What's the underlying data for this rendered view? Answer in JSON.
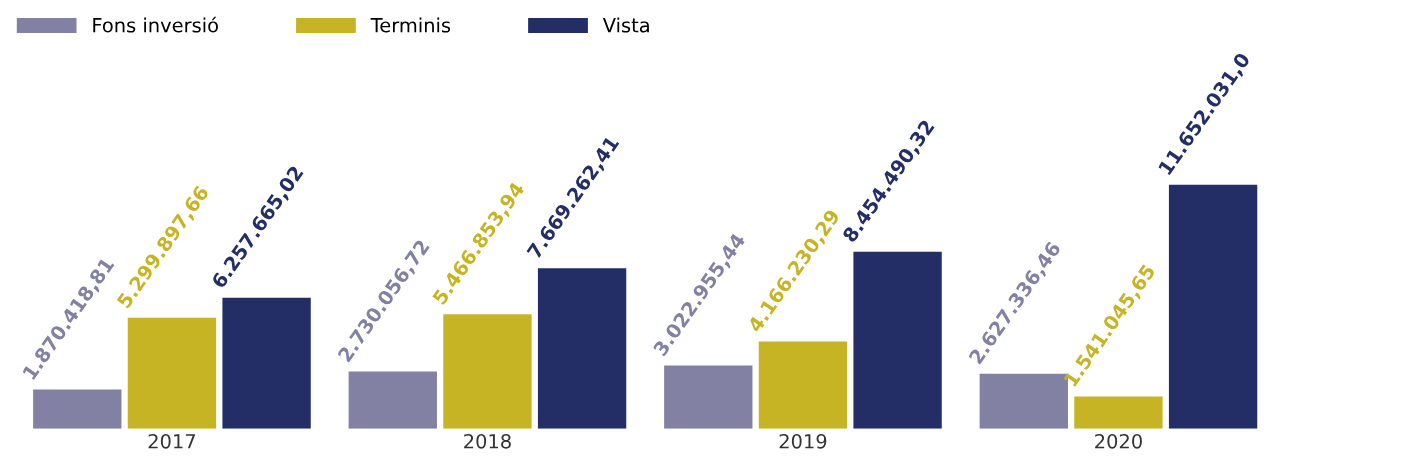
{
  "chart_data": {
    "type": "bar",
    "categories": [
      "2017",
      "2018",
      "2019",
      "2020"
    ],
    "series": [
      {
        "name": "Fons inversió",
        "color": "#8280a3",
        "values": [
          1870418.81,
          2730056.72,
          3022955.44,
          2627336.46
        ],
        "value_labels": [
          "1.870.418,81",
          "2.730.056,72",
          "3.022.955,44",
          "2.627.336,46"
        ]
      },
      {
        "name": "Terminis",
        "color": "#c6b424",
        "values": [
          5299897.66,
          5466853.94,
          4166230.29,
          1541045.65
        ],
        "value_labels": [
          "5.299.897,66",
          "5.466.853,94",
          "4.166.230,29",
          "1.541.045,65"
        ]
      },
      {
        "name": "Vista",
        "color": "#232e66",
        "values": [
          6257665.02,
          7669262.41,
          8454490.32,
          11652031.0
        ],
        "value_labels": [
          "6.257.665,02",
          "7.669.262,41",
          "8.454.490,32",
          "11.652.031,0"
        ]
      }
    ],
    "legend": "top left"
  }
}
